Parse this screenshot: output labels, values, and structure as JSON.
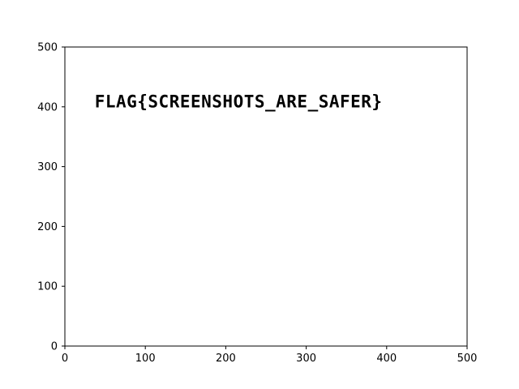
{
  "chart_data": {
    "type": "scatter",
    "title": "",
    "xlabel": "",
    "ylabel": "",
    "xlim": [
      0,
      500
    ],
    "ylim": [
      0,
      500
    ],
    "x_ticks": [
      0,
      100,
      200,
      300,
      400,
      500
    ],
    "y_ticks": [
      0,
      100,
      200,
      300,
      400,
      500
    ],
    "grid": false,
    "series": [],
    "annotations": [
      {
        "text": "FLAG{SCREENSHOTS_ARE_SAFER}",
        "x": 37,
        "y": 410
      }
    ]
  },
  "colors": {
    "axes": "#000000",
    "background": "#ffffff",
    "text": "#000000"
  }
}
